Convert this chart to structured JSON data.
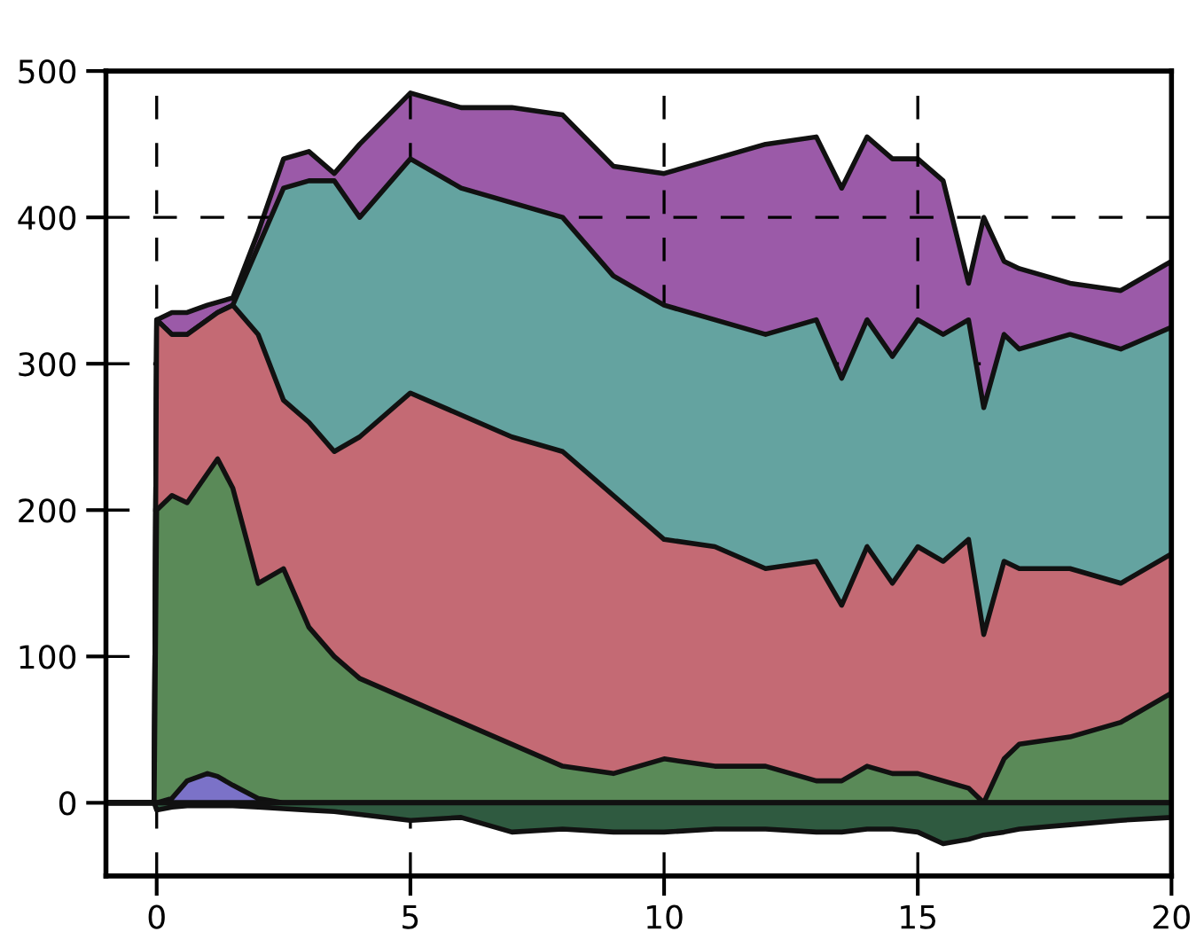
{
  "chart_data": {
    "type": "area",
    "x": [
      -1,
      -0.05,
      0,
      0.3,
      0.6,
      1,
      1.2,
      1.5,
      2,
      2.5,
      3,
      3.5,
      4,
      5,
      6,
      7,
      8,
      9,
      10,
      11,
      12,
      13,
      13.5,
      14,
      14.5,
      15,
      15.5,
      16,
      16.3,
      16.7,
      17,
      18,
      19,
      20
    ],
    "series": [
      {
        "color": "#9b5aa8",
        "values": [
          0,
          0,
          330,
          335,
          335,
          340,
          342,
          345,
          390,
          440,
          445,
          430,
          450,
          485,
          475,
          475,
          470,
          435,
          430,
          440,
          450,
          455,
          420,
          455,
          440,
          440,
          425,
          355,
          400,
          370,
          365,
          355,
          350,
          370
        ]
      },
      {
        "color": "#64a3a0",
        "values": [
          0,
          0,
          330,
          320,
          320,
          330,
          335,
          340,
          380,
          420,
          425,
          425,
          400,
          440,
          420,
          410,
          400,
          360,
          340,
          330,
          320,
          330,
          290,
          330,
          305,
          330,
          320,
          330,
          270,
          320,
          310,
          320,
          310,
          325
        ]
      },
      {
        "color": "#c46a74",
        "values": [
          0,
          0,
          330,
          320,
          320,
          330,
          335,
          340,
          320,
          275,
          260,
          240,
          250,
          280,
          265,
          250,
          240,
          210,
          180,
          175,
          160,
          165,
          135,
          175,
          150,
          175,
          165,
          180,
          115,
          165,
          160,
          160,
          150,
          170
        ]
      },
      {
        "color": "#5a8a58",
        "values": [
          0,
          0,
          200,
          210,
          205,
          225,
          235,
          215,
          150,
          160,
          120,
          100,
          85,
          70,
          55,
          40,
          25,
          20,
          30,
          25,
          25,
          15,
          15,
          25,
          20,
          20,
          15,
          10,
          0,
          30,
          40,
          45,
          55,
          75
        ]
      },
      {
        "color": "#7b72c8",
        "values": [
          0,
          0,
          0,
          3,
          15,
          20,
          18,
          12,
          3,
          0,
          0,
          0,
          0,
          0,
          0,
          0,
          0,
          0,
          0,
          0,
          0,
          0,
          0,
          0,
          0,
          0,
          0,
          0,
          0,
          0,
          0,
          0,
          0,
          0
        ]
      },
      {
        "color": "#2f5a40",
        "values": [
          0,
          0,
          -5,
          -3,
          -2,
          -2,
          -2,
          -2,
          -3,
          -4,
          -5,
          -6,
          -8,
          -12,
          -10,
          -20,
          -18,
          -20,
          -20,
          -18,
          -18,
          -20,
          -20,
          -18,
          -18,
          -20,
          -28,
          -25,
          -22,
          -20,
          -18,
          -15,
          -12,
          -10
        ]
      }
    ],
    "xlim": [
      -1,
      20
    ],
    "ylim": [
      -50,
      500
    ],
    "xticks": [
      0,
      5,
      10,
      15,
      20
    ],
    "yticks": [
      0,
      100,
      200,
      300,
      400,
      500
    ],
    "grid": true,
    "line_style": "solid"
  }
}
